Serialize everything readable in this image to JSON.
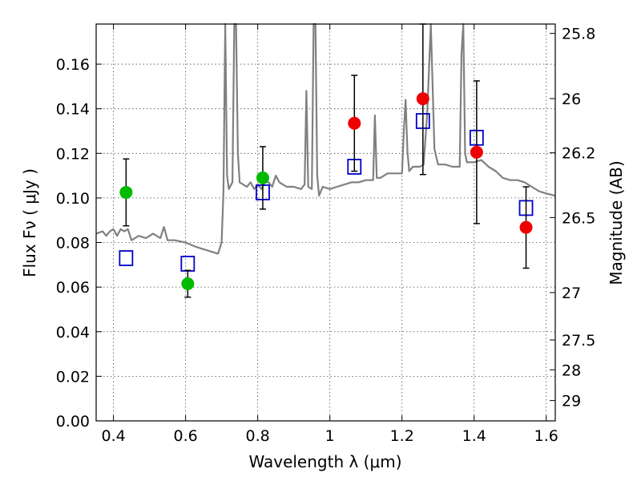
{
  "chart_data": {
    "type": "scatter",
    "xlabel": "Wavelength  λ (μm)",
    "ylabel": "Flux  Fν  ( μJy )",
    "y2label": "Magnitude (AB)",
    "xlim": [
      0.352,
      1.625
    ],
    "ylim": [
      0.0,
      0.178
    ],
    "xticks": [
      0.4,
      0.6,
      0.8,
      1.0,
      1.2,
      1.4,
      1.6
    ],
    "xtick_labels": [
      "0.4",
      "0.6",
      "0.8",
      "1",
      "1.2",
      "1.4",
      "1.6"
    ],
    "yticks": [
      0.0,
      0.02,
      0.04,
      0.06,
      0.08,
      0.1,
      0.12,
      0.14,
      0.16
    ],
    "ytick_labels": [
      "0.00",
      "0.02",
      "0.04",
      "0.06",
      "0.08",
      "0.10",
      "0.12",
      "0.14",
      "0.16"
    ],
    "mag_ticks": [
      25.8,
      26,
      26.2,
      26.5,
      27,
      27.5,
      28,
      29
    ],
    "mag_tick_labels": [
      "25.8",
      "26",
      "26.2",
      "26.5",
      "27",
      "27.5",
      "28",
      "29"
    ],
    "grid": true,
    "colors": {
      "green": "#00bb00",
      "red": "#ee0000",
      "blue": "#0000cc",
      "model": "#808080"
    },
    "observed_points": [
      {
        "x": 0.435,
        "y": 0.1025,
        "yerr_low": 0.0875,
        "yerr_high": 0.1175,
        "color": "green"
      },
      {
        "x": 0.606,
        "y": 0.0615,
        "yerr_low": 0.0555,
        "yerr_high": 0.0675,
        "color": "green"
      },
      {
        "x": 0.814,
        "y": 0.109,
        "yerr_low": 0.095,
        "yerr_high": 0.123,
        "color": "green"
      },
      {
        "x": 1.068,
        "y": 0.1335,
        "yerr_low": 0.112,
        "yerr_high": 0.155,
        "color": "red"
      },
      {
        "x": 1.258,
        "y": 0.1445,
        "yerr_low": 0.1105,
        "yerr_high": 0.178,
        "color": "red"
      },
      {
        "x": 1.407,
        "y": 0.1205,
        "yerr_low": 0.0885,
        "yerr_high": 0.1525,
        "color": "red"
      },
      {
        "x": 1.544,
        "y": 0.0868,
        "yerr_low": 0.0685,
        "yerr_high": 0.105,
        "color": "red"
      }
    ],
    "model_points": [
      {
        "x": 0.435,
        "y": 0.073
      },
      {
        "x": 0.606,
        "y": 0.0705
      },
      {
        "x": 0.814,
        "y": 0.1025
      },
      {
        "x": 1.068,
        "y": 0.114
      },
      {
        "x": 1.258,
        "y": 0.1345
      },
      {
        "x": 1.407,
        "y": 0.127
      },
      {
        "x": 1.544,
        "y": 0.0955
      }
    ],
    "model_spectrum": {
      "x": [
        0.352,
        0.37,
        0.38,
        0.39,
        0.4,
        0.41,
        0.42,
        0.43,
        0.44,
        0.45,
        0.47,
        0.49,
        0.51,
        0.53,
        0.54,
        0.55,
        0.57,
        0.6,
        0.63,
        0.65,
        0.67,
        0.69,
        0.7,
        0.705,
        0.71,
        0.715,
        0.72,
        0.73,
        0.735,
        0.74,
        0.745,
        0.75,
        0.76,
        0.77,
        0.78,
        0.79,
        0.8,
        0.81,
        0.82,
        0.83,
        0.84,
        0.85,
        0.86,
        0.87,
        0.88,
        0.9,
        0.92,
        0.93,
        0.935,
        0.94,
        0.95,
        0.955,
        0.96,
        0.965,
        0.97,
        0.98,
        1.0,
        1.02,
        1.04,
        1.06,
        1.08,
        1.1,
        1.12,
        1.125,
        1.13,
        1.14,
        1.16,
        1.18,
        1.2,
        1.205,
        1.21,
        1.215,
        1.22,
        1.23,
        1.25,
        1.26,
        1.27,
        1.28,
        1.29,
        1.3,
        1.32,
        1.34,
        1.36,
        1.365,
        1.37,
        1.375,
        1.38,
        1.4,
        1.42,
        1.44,
        1.46,
        1.48,
        1.5,
        1.52,
        1.54,
        1.56,
        1.58,
        1.6,
        1.625
      ],
      "y": [
        0.084,
        0.085,
        0.083,
        0.085,
        0.086,
        0.083,
        0.086,
        0.085,
        0.086,
        0.081,
        0.083,
        0.082,
        0.084,
        0.082,
        0.087,
        0.081,
        0.081,
        0.08,
        0.078,
        0.077,
        0.076,
        0.075,
        0.08,
        0.103,
        0.178,
        0.11,
        0.104,
        0.107,
        0.178,
        0.178,
        0.12,
        0.107,
        0.106,
        0.105,
        0.107,
        0.104,
        0.106,
        0.104,
        0.107,
        0.107,
        0.105,
        0.11,
        0.107,
        0.106,
        0.105,
        0.105,
        0.104,
        0.106,
        0.148,
        0.105,
        0.104,
        0.178,
        0.178,
        0.11,
        0.101,
        0.105,
        0.104,
        0.105,
        0.106,
        0.107,
        0.107,
        0.108,
        0.108,
        0.137,
        0.109,
        0.109,
        0.111,
        0.111,
        0.111,
        0.13,
        0.144,
        0.121,
        0.112,
        0.114,
        0.114,
        0.115,
        0.138,
        0.178,
        0.122,
        0.115,
        0.115,
        0.114,
        0.114,
        0.165,
        0.178,
        0.12,
        0.116,
        0.116,
        0.117,
        0.114,
        0.112,
        0.109,
        0.108,
        0.108,
        0.107,
        0.105,
        0.103,
        0.102,
        0.101
      ]
    }
  }
}
